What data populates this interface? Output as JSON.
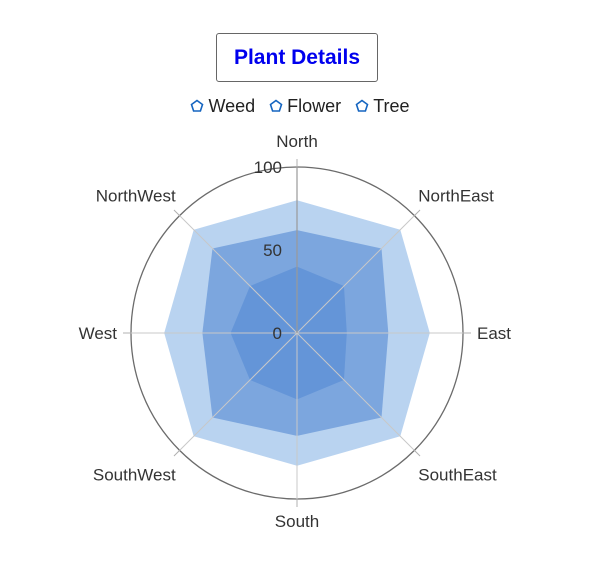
{
  "chart_data": {
    "type": "radar",
    "title": "Plant Details",
    "categories": [
      "North",
      "NorthEast",
      "East",
      "SouthEast",
      "South",
      "SouthWest",
      "West",
      "NorthWest"
    ],
    "series": [
      {
        "name": "Weed",
        "values": [
          40,
          40,
          30,
          40,
          40,
          40,
          40,
          40
        ],
        "color": "#5c8fd6"
      },
      {
        "name": "Flower",
        "values": [
          62,
          72,
          55,
          72,
          62,
          72,
          57,
          72
        ],
        "color": "#5b8dd4"
      },
      {
        "name": "Tree",
        "values": [
          80,
          88,
          80,
          88,
          80,
          88,
          80,
          88
        ],
        "color": "#b9d3f0"
      }
    ],
    "radial_ticks": [
      "0",
      "50",
      "100"
    ],
    "r_range": [
      0,
      100
    ],
    "grid": true,
    "legend": "top-center"
  },
  "legend_icon_color": "#1565c0"
}
